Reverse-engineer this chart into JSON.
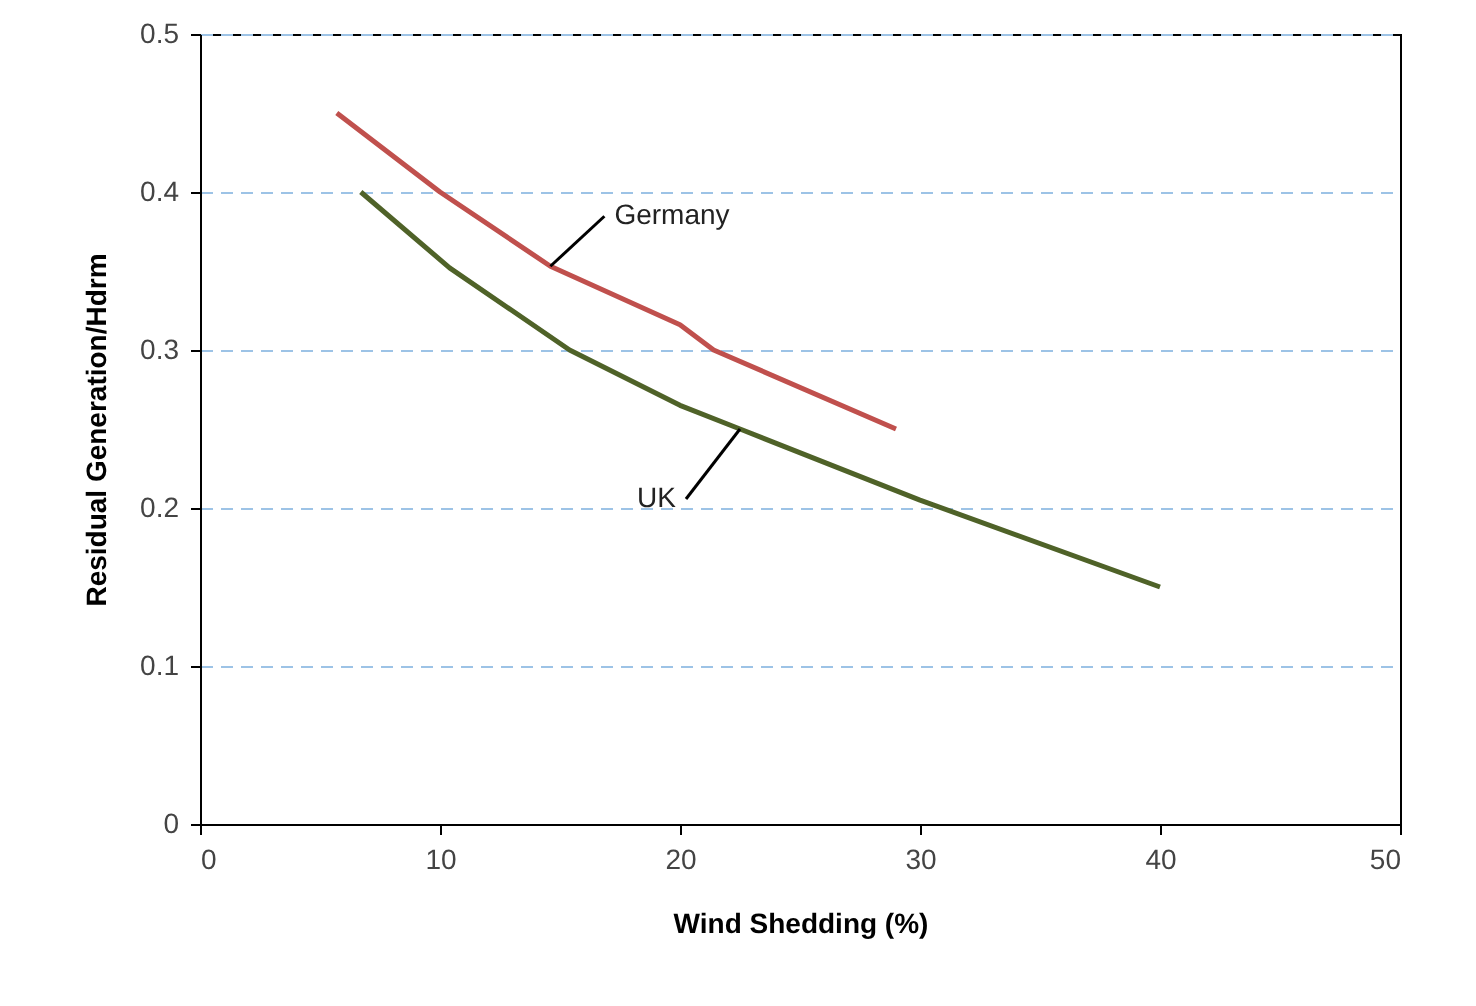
{
  "chart_data": {
    "type": "line",
    "xlabel": "Wind Shedding (%)",
    "ylabel": "Residual Generation/Hdrm",
    "xlim": [
      0,
      50
    ],
    "xticks": [
      0,
      10,
      20,
      30,
      40,
      50
    ],
    "ylim": [
      0,
      0.5
    ],
    "yticks": [
      0,
      0.1,
      0.2,
      0.3,
      0.4,
      0.5
    ],
    "grid": "y",
    "series": [
      {
        "name": "Germany",
        "color": "#c0504d",
        "x": [
          5.7,
          10,
          14.6,
          20,
          21.4,
          29
        ],
        "values": [
          0.45,
          0.4,
          0.353,
          0.316,
          0.3,
          0.25
        ]
      },
      {
        "name": "UK",
        "color": "#4f6228",
        "x": [
          6.7,
          10.4,
          15.4,
          20,
          22.5,
          30,
          40
        ],
        "values": [
          0.4,
          0.352,
          0.3,
          0.265,
          0.25,
          0.205,
          0.15
        ]
      }
    ]
  }
}
